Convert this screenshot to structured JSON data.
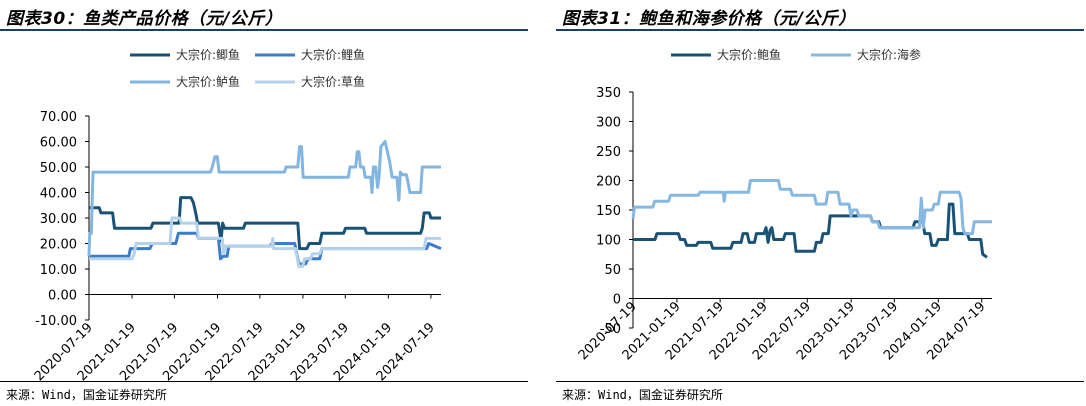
{
  "left": {
    "title": "图表30：鱼类产品价格（元/公斤）",
    "source": "来源：Wind，国金证券研究所",
    "chart_data": {
      "type": "line",
      "x_ticks": [
        "2020-07-19",
        "2021-01-19",
        "2021-07-19",
        "2022-01-19",
        "2022-07-19",
        "2023-01-19",
        "2023-07-19",
        "2024-01-19",
        "2024-07-19"
      ],
      "x_range": [
        "2020-07-19",
        "2024-08-31"
      ],
      "ylim": [
        -10,
        70
      ],
      "y_ticks": [
        "-10.00",
        "0.00",
        "10.00",
        "20.00",
        "30.00",
        "40.00",
        "50.00",
        "60.00",
        "70.00"
      ],
      "grid": false,
      "legend_position": "top",
      "series": [
        {
          "name": "大宗价:鲫鱼",
          "color": "#1a5276",
          "points": [
            [
              "2020-07-19",
              34
            ],
            [
              "2020-09-01",
              34
            ],
            [
              "2020-09-08",
              32
            ],
            [
              "2020-10-28",
              32
            ],
            [
              "2020-11-05",
              26
            ],
            [
              "2021-04-10",
              26
            ],
            [
              "2021-04-18",
              28
            ],
            [
              "2021-08-08",
              28
            ],
            [
              "2021-08-15",
              38
            ],
            [
              "2021-09-28",
              38
            ],
            [
              "2021-10-08",
              36
            ],
            [
              "2021-10-18",
              32
            ],
            [
              "2021-10-26",
              28
            ],
            [
              "2022-01-23",
              28
            ],
            [
              "2022-02-03",
              21
            ],
            [
              "2022-02-10",
              28
            ],
            [
              "2022-02-18",
              26
            ],
            [
              "2022-05-10",
              26
            ],
            [
              "2022-05-18",
              28
            ],
            [
              "2022-12-28",
              28
            ],
            [
              "2023-01-05",
              18
            ],
            [
              "2023-02-05",
              18
            ],
            [
              "2023-02-15",
              20
            ],
            [
              "2023-04-01",
              20
            ],
            [
              "2023-04-10",
              24
            ],
            [
              "2023-07-12",
              24
            ],
            [
              "2023-07-20",
              26
            ],
            [
              "2023-10-10",
              26
            ],
            [
              "2023-10-18",
              24
            ],
            [
              "2024-06-05",
              24
            ],
            [
              "2024-06-12",
              26
            ],
            [
              "2024-06-20",
              32
            ],
            [
              "2024-07-12",
              32
            ],
            [
              "2024-07-19",
              30
            ],
            [
              "2024-08-31",
              30
            ]
          ]
        },
        {
          "name": "大宗价:鲤鱼",
          "color": "#3d7cc9",
          "points": [
            [
              "2020-07-19",
              15
            ],
            [
              "2021-01-05",
              15
            ],
            [
              "2021-01-12",
              18
            ],
            [
              "2021-04-05",
              18
            ],
            [
              "2021-04-15",
              20
            ],
            [
              "2021-07-25",
              20
            ],
            [
              "2021-08-05",
              24
            ],
            [
              "2021-10-22",
              24
            ],
            [
              "2021-10-30",
              22
            ],
            [
              "2022-01-23",
              22
            ],
            [
              "2022-02-01",
              14
            ],
            [
              "2022-02-12",
              15
            ],
            [
              "2022-03-01",
              15
            ],
            [
              "2022-03-08",
              19
            ],
            [
              "2022-08-30",
              19
            ],
            [
              "2022-09-08",
              20
            ],
            [
              "2022-12-15",
              20
            ],
            [
              "2023-01-02",
              12
            ],
            [
              "2023-01-30",
              12
            ],
            [
              "2023-02-10",
              14
            ],
            [
              "2023-04-01",
              14
            ],
            [
              "2023-04-10",
              18
            ],
            [
              "2024-07-01",
              18
            ],
            [
              "2024-07-10",
              20
            ],
            [
              "2024-08-31",
              18
            ]
          ]
        },
        {
          "name": "大宗价:鲈鱼",
          "color": "#82b6e0",
          "points": [
            [
              "2020-07-19",
              15
            ],
            [
              "2020-07-22",
              24
            ],
            [
              "2020-07-29",
              24
            ],
            [
              "2020-08-05",
              48
            ],
            [
              "2021-12-20",
              48
            ],
            [
              "2021-12-28",
              50
            ],
            [
              "2022-01-08",
              54
            ],
            [
              "2022-01-18",
              54
            ],
            [
              "2022-01-26",
              48
            ],
            [
              "2022-11-01",
              48
            ],
            [
              "2022-11-08",
              50
            ],
            [
              "2022-12-28",
              50
            ],
            [
              "2023-01-05",
              58
            ],
            [
              "2023-01-13",
              58
            ],
            [
              "2023-01-20",
              46
            ],
            [
              "2023-08-01",
              46
            ],
            [
              "2023-08-08",
              50
            ],
            [
              "2023-09-02",
              50
            ],
            [
              "2023-09-08",
              56
            ],
            [
              "2023-09-15",
              56
            ],
            [
              "2023-09-22",
              50
            ],
            [
              "2023-10-05",
              50
            ],
            [
              "2023-10-12",
              46
            ],
            [
              "2023-11-05",
              46
            ],
            [
              "2023-11-10",
              40
            ],
            [
              "2023-11-16",
              50
            ],
            [
              "2023-11-26",
              50
            ],
            [
              "2023-12-04",
              42
            ],
            [
              "2023-12-10",
              46
            ],
            [
              "2023-12-18",
              58
            ],
            [
              "2024-01-05",
              60
            ],
            [
              "2024-01-25",
              52
            ],
            [
              "2024-02-04",
              46
            ],
            [
              "2024-02-24",
              46
            ],
            [
              "2024-03-04",
              37
            ],
            [
              "2024-03-10",
              48
            ],
            [
              "2024-03-20",
              47
            ],
            [
              "2024-04-05",
              47
            ],
            [
              "2024-04-12",
              44
            ],
            [
              "2024-04-20",
              40
            ],
            [
              "2024-06-05",
              40
            ],
            [
              "2024-06-12",
              50
            ],
            [
              "2024-08-31",
              50
            ]
          ]
        },
        {
          "name": "大宗价:草鱼",
          "color": "#b4d2ec",
          "points": [
            [
              "2020-07-19",
              14
            ],
            [
              "2021-01-20",
              14
            ],
            [
              "2021-01-28",
              16
            ],
            [
              "2021-02-05",
              20
            ],
            [
              "2021-06-30",
              20
            ],
            [
              "2021-07-08",
              30
            ],
            [
              "2021-08-10",
              30
            ],
            [
              "2021-08-18",
              28
            ],
            [
              "2021-10-22",
              28
            ],
            [
              "2021-10-30",
              22
            ],
            [
              "2022-02-08",
              22
            ],
            [
              "2022-02-15",
              16
            ],
            [
              "2022-02-20",
              19
            ],
            [
              "2022-09-08",
              19
            ],
            [
              "2022-09-12",
              22
            ],
            [
              "2022-09-16",
              18
            ],
            [
              "2022-12-18",
              18
            ],
            [
              "2023-01-02",
              11
            ],
            [
              "2023-01-18",
              11
            ],
            [
              "2023-01-26",
              14
            ],
            [
              "2023-02-20",
              14
            ],
            [
              "2023-03-01",
              16
            ],
            [
              "2023-04-01",
              16
            ],
            [
              "2023-04-10",
              18
            ],
            [
              "2024-06-20",
              18
            ],
            [
              "2024-06-28",
              22
            ],
            [
              "2024-08-31",
              22
            ]
          ]
        }
      ]
    }
  },
  "right": {
    "title": "图表31：鲍鱼和海参价格（元/公斤）",
    "source": "来源：Wind，国金证券研究所",
    "chart_data": {
      "type": "line",
      "x_ticks": [
        "2020-07-19",
        "2021-01-19",
        "2021-07-19",
        "2022-01-19",
        "2022-07-19",
        "2023-01-19",
        "2023-07-19",
        "2024-01-19",
        "2024-07-19"
      ],
      "x_range": [
        "2020-07-19",
        "2024-08-31"
      ],
      "ylim": [
        -50,
        350
      ],
      "y_ticks": [
        "-50",
        "0",
        "50",
        "100",
        "150",
        "200",
        "250",
        "300",
        "350"
      ],
      "grid": false,
      "legend_position": "top",
      "series": [
        {
          "name": "大宗价:鲍鱼",
          "color": "#1a5276",
          "points": [
            [
              "2020-07-19",
              100
            ],
            [
              "2020-10-19",
              100
            ],
            [
              "2020-10-27",
              110
            ],
            [
              "2021-01-25",
              110
            ],
            [
              "2021-02-02",
              100
            ],
            [
              "2021-02-20",
              100
            ],
            [
              "2021-03-01",
              90
            ],
            [
              "2021-04-10",
              90
            ],
            [
              "2021-04-18",
              95
            ],
            [
              "2021-06-10",
              95
            ],
            [
              "2021-06-18",
              85
            ],
            [
              "2021-09-02",
              85
            ],
            [
              "2021-09-10",
              95
            ],
            [
              "2021-10-15",
              95
            ],
            [
              "2021-10-23",
              110
            ],
            [
              "2021-11-10",
              110
            ],
            [
              "2021-11-18",
              95
            ],
            [
              "2021-12-10",
              95
            ],
            [
              "2021-12-18",
              110
            ],
            [
              "2022-01-19",
              110
            ],
            [
              "2022-01-27",
              120
            ],
            [
              "2022-02-05",
              95
            ],
            [
              "2022-02-13",
              115
            ],
            [
              "2022-02-21",
              120
            ],
            [
              "2022-03-01",
              100
            ],
            [
              "2022-04-10",
              100
            ],
            [
              "2022-04-18",
              110
            ],
            [
              "2022-05-25",
              110
            ],
            [
              "2022-06-02",
              80
            ],
            [
              "2022-08-18",
              80
            ],
            [
              "2022-08-26",
              95
            ],
            [
              "2022-09-15",
              95
            ],
            [
              "2022-09-23",
              110
            ],
            [
              "2022-10-15",
              110
            ],
            [
              "2022-10-23",
              140
            ],
            [
              "2023-04-10",
              140
            ],
            [
              "2023-04-18",
              130
            ],
            [
              "2023-05-15",
              130
            ],
            [
              "2023-05-23",
              120
            ],
            [
              "2023-10-05",
              120
            ],
            [
              "2023-10-13",
              130
            ],
            [
              "2023-11-15",
              130
            ],
            [
              "2023-11-23",
              110
            ],
            [
              "2023-12-15",
              110
            ],
            [
              "2023-12-23",
              90
            ],
            [
              "2024-01-10",
              90
            ],
            [
              "2024-01-19",
              100
            ],
            [
              "2024-02-26",
              100
            ],
            [
              "2024-03-05",
              160
            ],
            [
              "2024-03-20",
              160
            ],
            [
              "2024-03-28",
              110
            ],
            [
              "2024-05-20",
              110
            ],
            [
              "2024-05-28",
              100
            ],
            [
              "2024-07-15",
              100
            ],
            [
              "2024-07-23",
              75
            ],
            [
              "2024-08-10",
              70
            ]
          ]
        },
        {
          "name": "大宗价:海参",
          "color": "#86b8e2",
          "points": [
            [
              "2020-07-19",
              135
            ],
            [
              "2020-07-25",
              155
            ],
            [
              "2020-10-10",
              155
            ],
            [
              "2020-10-18",
              165
            ],
            [
              "2020-12-15",
              165
            ],
            [
              "2020-12-23",
              175
            ],
            [
              "2021-04-18",
              175
            ],
            [
              "2021-04-26",
              180
            ],
            [
              "2021-08-01",
              180
            ],
            [
              "2021-08-05",
              165
            ],
            [
              "2021-08-10",
              180
            ],
            [
              "2021-11-15",
              180
            ],
            [
              "2021-11-23",
              200
            ],
            [
              "2022-03-20",
              200
            ],
            [
              "2022-03-28",
              185
            ],
            [
              "2022-05-10",
              185
            ],
            [
              "2022-05-18",
              175
            ],
            [
              "2022-08-18",
              175
            ],
            [
              "2022-08-26",
              160
            ],
            [
              "2022-10-05",
              160
            ],
            [
              "2022-10-13",
              180
            ],
            [
              "2022-11-25",
              180
            ],
            [
              "2022-12-03",
              160
            ],
            [
              "2023-01-10",
              160
            ],
            [
              "2023-01-18",
              140
            ],
            [
              "2023-01-26",
              150
            ],
            [
              "2023-02-12",
              150
            ],
            [
              "2023-02-20",
              140
            ],
            [
              "2023-04-10",
              140
            ],
            [
              "2023-04-18",
              130
            ],
            [
              "2023-05-10",
              130
            ],
            [
              "2023-05-18",
              120
            ],
            [
              "2023-11-01",
              120
            ],
            [
              "2023-11-09",
              170
            ],
            [
              "2023-11-17",
              120
            ],
            [
              "2023-11-25",
              150
            ],
            [
              "2023-12-25",
              150
            ],
            [
              "2024-01-02",
              160
            ],
            [
              "2024-01-19",
              160
            ],
            [
              "2024-01-27",
              180
            ],
            [
              "2024-04-15",
              180
            ],
            [
              "2024-04-23",
              170
            ],
            [
              "2024-05-01",
              120
            ],
            [
              "2024-05-09",
              110
            ],
            [
              "2024-06-10",
              110
            ],
            [
              "2024-06-18",
              130
            ],
            [
              "2024-08-31",
              130
            ]
          ]
        }
      ]
    }
  }
}
